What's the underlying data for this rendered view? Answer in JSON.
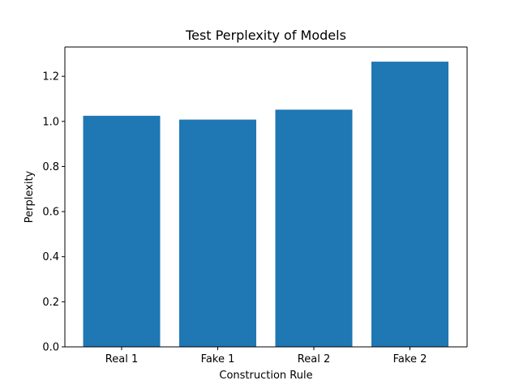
{
  "chart_data": {
    "type": "bar",
    "title": "Test Perplexity of Models",
    "xlabel": "Construction Rule",
    "ylabel": "Perplexity",
    "categories": [
      "Real 1",
      "Fake 1",
      "Real 2",
      "Fake 2"
    ],
    "values": [
      1.025,
      1.008,
      1.052,
      1.265
    ],
    "ylim": [
      0,
      1.33
    ],
    "yticks": [
      0.0,
      0.2,
      0.4,
      0.6,
      0.8,
      1.0,
      1.2
    ],
    "ytick_labels": [
      "0.0",
      "0.2",
      "0.4",
      "0.6",
      "0.8",
      "1.0",
      "1.2"
    ],
    "grid": false,
    "colors": {
      "bar": "#1f77b4",
      "axis": "#000000",
      "background": "#ffffff"
    }
  }
}
